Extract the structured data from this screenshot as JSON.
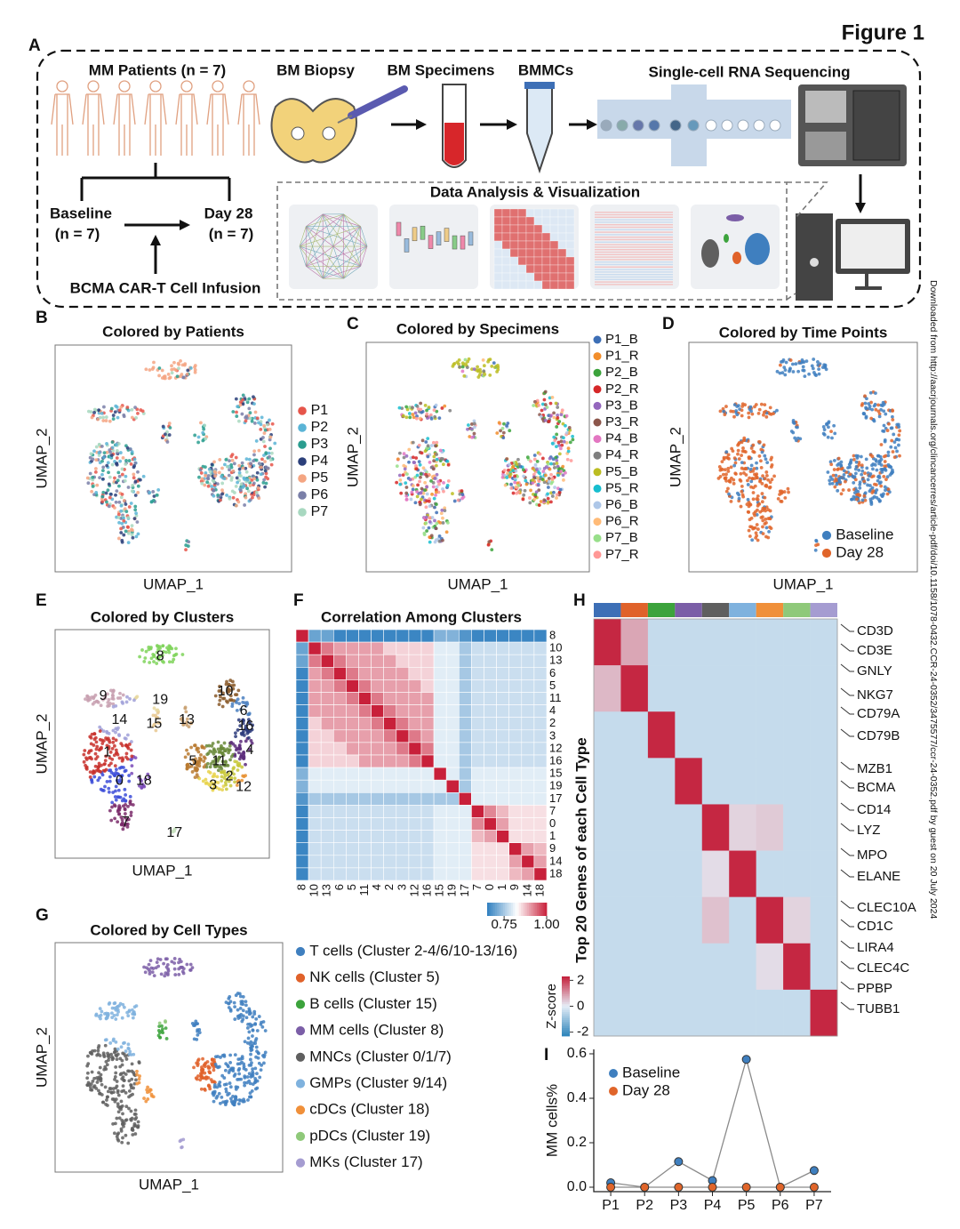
{
  "figure_title": "Figure 1",
  "side_note": "Downloaded from http://aacrjournals.org/clincancerres/article-pdf/doi/10.1158/1078-0432.CCR-24-0352/3475577/ccr-24-0352.pdf by guest on 20 July 2024",
  "panel_a": {
    "letter": "A",
    "patients": "MM Patients (n = 7)",
    "biopsy": "BM Biopsy",
    "specimens": "BM Specimens",
    "bmmcs": "BMMCs",
    "sequencing": "Single-cell RNA Sequencing",
    "baseline": "Baseline",
    "baseline_n": "(n = 7)",
    "day28": "Day 28",
    "day28_n": "(n = 7)",
    "infusion": "BCMA CAR-T Cell Infusion",
    "analysis": "Data Analysis & Visualization"
  },
  "umaps": [
    {
      "letter": "B",
      "title": "Colored by Patients",
      "xlabel": "UMAP_1",
      "ylabel": "UMAP_2",
      "legend": [
        {
          "name": "P1",
          "color": "#e6554a"
        },
        {
          "name": "P2",
          "color": "#5ab4d6"
        },
        {
          "name": "P3",
          "color": "#2a9d8f"
        },
        {
          "name": "P4",
          "color": "#2b3f7a"
        },
        {
          "name": "P5",
          "color": "#f4a582"
        },
        {
          "name": "P6",
          "color": "#7a7fa8"
        },
        {
          "name": "P7",
          "color": "#a8d8c0"
        }
      ]
    },
    {
      "letter": "C",
      "title": "Colored by Specimens",
      "xlabel": "UMAP_1",
      "ylabel": "UMAP_2",
      "legend": [
        {
          "name": "P1_B",
          "color": "#3d6fb6"
        },
        {
          "name": "P1_R",
          "color": "#f28e2b"
        },
        {
          "name": "P2_B",
          "color": "#3ca33c"
        },
        {
          "name": "P2_R",
          "color": "#d62728"
        },
        {
          "name": "P3_B",
          "color": "#9467bd"
        },
        {
          "name": "P3_R",
          "color": "#8c564b"
        },
        {
          "name": "P4_B",
          "color": "#e377c2"
        },
        {
          "name": "P4_R",
          "color": "#7f7f7f"
        },
        {
          "name": "P5_B",
          "color": "#bcbd22"
        },
        {
          "name": "P5_R",
          "color": "#17becf"
        },
        {
          "name": "P6_B",
          "color": "#aec7e8"
        },
        {
          "name": "P6_R",
          "color": "#ffbb78"
        },
        {
          "name": "P7_B",
          "color": "#98df8a"
        },
        {
          "name": "P7_R",
          "color": "#ff9896"
        }
      ]
    },
    {
      "letter": "D",
      "title": "Colored by Time Points",
      "xlabel": "UMAP_1",
      "ylabel": "UMAP_2",
      "legend": [
        {
          "name": "Baseline",
          "color": "#3f7fbf"
        },
        {
          "name": "Day 28",
          "color": "#e0652a"
        }
      ]
    },
    {
      "letter": "E",
      "title": "Colored by Clusters",
      "xlabel": "UMAP_1",
      "ylabel": "UMAP_2",
      "clusters": [
        {
          "label": "0",
          "color": "#3b4cd8"
        },
        {
          "label": "1",
          "color": "#c8302c"
        },
        {
          "label": "2",
          "color": "#c8c83a"
        },
        {
          "label": "3",
          "color": "#e8d24a"
        },
        {
          "label": "4",
          "color": "#5a2a7a"
        },
        {
          "label": "5",
          "color": "#b87a30"
        },
        {
          "label": "6",
          "color": "#4a7fbf"
        },
        {
          "label": "7",
          "color": "#7a2a6a"
        },
        {
          "label": "8",
          "color": "#7fd45a"
        },
        {
          "label": "9",
          "color": "#c8a0b0"
        },
        {
          "label": "10",
          "color": "#8a5a2a"
        },
        {
          "label": "11",
          "color": "#6a8a3a"
        },
        {
          "label": "12",
          "color": "#e89030"
        },
        {
          "label": "13",
          "color": "#c8a070"
        },
        {
          "label": "14",
          "color": "#a0a0d8"
        },
        {
          "label": "15",
          "color": "#e8c890"
        },
        {
          "label": "16",
          "color": "#2a3a7a"
        },
        {
          "label": "17",
          "color": "#c8e0c0"
        },
        {
          "label": "18",
          "color": "#7a4ab8"
        },
        {
          "label": "19",
          "color": "#e8d8a0"
        }
      ]
    },
    {
      "letter": "G",
      "title": "Colored by Cell Types",
      "xlabel": "UMAP_1",
      "ylabel": "UMAP_2",
      "legend": [
        {
          "name": "T cells (Cluster 2-4/6/10-13/16)",
          "color": "#3f7fbf"
        },
        {
          "name": "NK cells (Cluster 5)",
          "color": "#e0622a"
        },
        {
          "name": "B cells (Cluster 15)",
          "color": "#3ca33c"
        },
        {
          "name": "MM cells (Cluster 8)",
          "color": "#7b5ea7"
        },
        {
          "name": "MNCs (Cluster 0/1/7)",
          "color": "#5f5f5f"
        },
        {
          "name": "GMPs (Cluster 9/14)",
          "color": "#7fb2de"
        },
        {
          "name": "cDCs (Cluster 18)",
          "color": "#f0903a"
        },
        {
          "name": "pDCs (Cluster 19)",
          "color": "#8fc97a"
        },
        {
          "name": "MKs (Cluster 17)",
          "color": "#a59cd1"
        }
      ]
    }
  ],
  "panel_f": {
    "letter": "F",
    "title": "Correlation Among Clusters",
    "labels": [
      "8",
      "10",
      "13",
      "6",
      "5",
      "11",
      "4",
      "2",
      "3",
      "12",
      "16",
      "15",
      "19",
      "17",
      "7",
      "0",
      "1",
      "9",
      "14",
      "18"
    ],
    "matrix": [
      [
        1,
        0.7,
        0.7,
        0.66,
        0.66,
        0.66,
        0.66,
        0.66,
        0.66,
        0.66,
        0.66,
        0.72,
        0.72,
        0.68,
        0.66,
        0.66,
        0.66,
        0.66,
        0.66,
        0.66
      ],
      [
        0.7,
        1,
        0.93,
        0.9,
        0.9,
        0.9,
        0.9,
        0.86,
        0.86,
        0.86,
        0.86,
        0.8,
        0.8,
        0.75,
        0.78,
        0.78,
        0.78,
        0.78,
        0.78,
        0.78
      ],
      [
        0.7,
        0.93,
        1,
        0.93,
        0.9,
        0.9,
        0.9,
        0.9,
        0.86,
        0.86,
        0.86,
        0.8,
        0.8,
        0.75,
        0.78,
        0.78,
        0.78,
        0.78,
        0.78,
        0.78
      ],
      [
        0.66,
        0.9,
        0.93,
        1,
        0.93,
        0.9,
        0.9,
        0.9,
        0.9,
        0.86,
        0.86,
        0.8,
        0.8,
        0.75,
        0.78,
        0.78,
        0.78,
        0.78,
        0.78,
        0.78
      ],
      [
        0.66,
        0.9,
        0.9,
        0.93,
        1,
        0.93,
        0.9,
        0.9,
        0.9,
        0.9,
        0.86,
        0.8,
        0.8,
        0.75,
        0.78,
        0.78,
        0.78,
        0.78,
        0.78,
        0.78
      ],
      [
        0.66,
        0.9,
        0.9,
        0.9,
        0.93,
        1,
        0.93,
        0.9,
        0.9,
        0.9,
        0.9,
        0.8,
        0.8,
        0.75,
        0.78,
        0.78,
        0.78,
        0.78,
        0.78,
        0.78
      ],
      [
        0.66,
        0.9,
        0.9,
        0.9,
        0.9,
        0.93,
        1,
        0.93,
        0.9,
        0.9,
        0.9,
        0.8,
        0.8,
        0.75,
        0.78,
        0.78,
        0.78,
        0.78,
        0.78,
        0.78
      ],
      [
        0.66,
        0.86,
        0.9,
        0.9,
        0.9,
        0.9,
        0.93,
        1,
        0.93,
        0.9,
        0.9,
        0.8,
        0.8,
        0.75,
        0.78,
        0.78,
        0.78,
        0.78,
        0.78,
        0.78
      ],
      [
        0.66,
        0.86,
        0.86,
        0.9,
        0.9,
        0.9,
        0.9,
        0.93,
        1,
        0.93,
        0.9,
        0.8,
        0.8,
        0.75,
        0.78,
        0.78,
        0.78,
        0.78,
        0.78,
        0.78
      ],
      [
        0.66,
        0.86,
        0.86,
        0.86,
        0.9,
        0.9,
        0.9,
        0.9,
        0.93,
        1,
        0.93,
        0.8,
        0.8,
        0.75,
        0.78,
        0.78,
        0.78,
        0.78,
        0.78,
        0.78
      ],
      [
        0.66,
        0.86,
        0.86,
        0.86,
        0.86,
        0.9,
        0.9,
        0.9,
        0.9,
        0.93,
        1,
        0.8,
        0.8,
        0.75,
        0.78,
        0.78,
        0.78,
        0.78,
        0.78,
        0.78
      ],
      [
        0.72,
        0.8,
        0.8,
        0.8,
        0.8,
        0.8,
        0.8,
        0.8,
        0.8,
        0.8,
        0.8,
        1,
        0.8,
        0.75,
        0.8,
        0.8,
        0.8,
        0.8,
        0.8,
        0.8
      ],
      [
        0.72,
        0.8,
        0.8,
        0.8,
        0.8,
        0.8,
        0.8,
        0.8,
        0.8,
        0.8,
        0.8,
        0.8,
        1,
        0.75,
        0.8,
        0.8,
        0.8,
        0.8,
        0.8,
        0.8
      ],
      [
        0.68,
        0.75,
        0.75,
        0.75,
        0.75,
        0.75,
        0.75,
        0.75,
        0.75,
        0.75,
        0.75,
        0.75,
        0.75,
        1,
        0.8,
        0.8,
        0.8,
        0.8,
        0.8,
        0.8
      ],
      [
        0.66,
        0.78,
        0.78,
        0.78,
        0.78,
        0.78,
        0.78,
        0.78,
        0.78,
        0.78,
        0.78,
        0.8,
        0.8,
        0.8,
        1,
        0.92,
        0.88,
        0.85,
        0.85,
        0.85
      ],
      [
        0.66,
        0.78,
        0.78,
        0.78,
        0.78,
        0.78,
        0.78,
        0.78,
        0.78,
        0.78,
        0.78,
        0.8,
        0.8,
        0.8,
        0.92,
        1,
        0.9,
        0.85,
        0.85,
        0.85
      ],
      [
        0.66,
        0.78,
        0.78,
        0.78,
        0.78,
        0.78,
        0.78,
        0.78,
        0.78,
        0.78,
        0.78,
        0.8,
        0.8,
        0.8,
        0.88,
        0.9,
        1,
        0.85,
        0.85,
        0.85
      ],
      [
        0.66,
        0.78,
        0.78,
        0.78,
        0.78,
        0.78,
        0.78,
        0.78,
        0.78,
        0.78,
        0.78,
        0.8,
        0.8,
        0.8,
        0.85,
        0.85,
        0.85,
        1,
        0.9,
        0.88
      ],
      [
        0.66,
        0.78,
        0.78,
        0.78,
        0.78,
        0.78,
        0.78,
        0.78,
        0.78,
        0.78,
        0.78,
        0.8,
        0.8,
        0.8,
        0.85,
        0.85,
        0.85,
        0.9,
        1,
        0.9
      ],
      [
        0.66,
        0.78,
        0.78,
        0.78,
        0.78,
        0.78,
        0.78,
        0.78,
        0.78,
        0.78,
        0.78,
        0.8,
        0.8,
        0.8,
        0.85,
        0.85,
        0.85,
        0.88,
        0.9,
        1
      ]
    ],
    "colorbar_lim": [
      0.65,
      1.0
    ],
    "colorbar_ticks": [
      0.75,
      {
        "value": 1,
        "label": "1.00"
      }
    ],
    "colors": [
      "#2f7fbf",
      "#ffffff",
      "#c8203a"
    ]
  },
  "panel_h": {
    "letter": "H",
    "ylabel": "Top 20 Genes of each Cell Type",
    "genes": [
      "CD3D",
      "CD3E",
      "GNLY",
      "NKG7",
      "CD79A",
      "CD79B",
      "MZB1",
      "BCMA",
      "CD14",
      "LYZ",
      "MPO",
      "ELANE",
      "CLEC10A",
      "CD1C",
      "LIRA4",
      "CLEC4C",
      "PPBP",
      "TUBB1"
    ],
    "column_colors": [
      "#3d6fb6",
      "#e0622a",
      "#3ca33c",
      "#7b5ea7",
      "#5f5f5f",
      "#7fb2de",
      "#f0903a",
      "#8fc97a",
      "#a59cd1"
    ],
    "z_blocks": [
      [
        2.2,
        0.8,
        -0.4,
        -0.4,
        -0.4,
        -0.4,
        -0.4,
        -0.4,
        -0.4
      ],
      [
        0.6,
        2.2,
        -0.4,
        -0.4,
        -0.4,
        -0.4,
        -0.4,
        -0.4,
        -0.4
      ],
      [
        -0.4,
        -0.4,
        2.2,
        -0.4,
        -0.4,
        -0.4,
        -0.4,
        -0.4,
        -0.4
      ],
      [
        -0.4,
        -0.4,
        -0.4,
        2.2,
        -0.4,
        -0.4,
        -0.4,
        -0.4,
        -0.4
      ],
      [
        -0.4,
        -0.4,
        -0.4,
        -0.4,
        2.2,
        0.3,
        0.4,
        -0.4,
        -0.4
      ],
      [
        -0.4,
        -0.4,
        -0.4,
        -0.4,
        0.2,
        2.2,
        -0.4,
        -0.4,
        -0.4
      ],
      [
        -0.4,
        -0.4,
        -0.4,
        -0.4,
        0.5,
        -0.4,
        2.2,
        0.3,
        -0.4
      ],
      [
        -0.4,
        -0.4,
        -0.4,
        -0.4,
        -0.4,
        -0.4,
        0.2,
        2.2,
        -0.4
      ],
      [
        -0.4,
        -0.4,
        -0.4,
        -0.4,
        -0.4,
        -0.4,
        -0.4,
        -0.4,
        2.2
      ]
    ],
    "colorbar_label": "Z-score",
    "colorbar_lim": [
      -2.3,
      2.3
    ],
    "colorbar_ticks": [
      2,
      0,
      -2
    ],
    "colors": [
      "#2b83ba",
      "#e6eef7",
      "#c41e3a"
    ]
  },
  "chart_data": {
    "type": "line",
    "letter": "I",
    "categories": [
      "P1",
      "P2",
      "P3",
      "P4",
      "P5",
      "P6",
      "P7"
    ],
    "series": [
      {
        "name": "Baseline",
        "color": "#3f7fbf",
        "values": [
          0.02,
          0.0,
          0.115,
          0.03,
          0.575,
          0.0,
          0.075
        ]
      },
      {
        "name": "Day 28",
        "color": "#e0652a",
        "values": [
          0.0,
          0.0,
          0.0,
          0.0,
          0.0,
          0.0,
          0.0
        ]
      }
    ],
    "line_color": "#8a8a8a",
    "ylabel": "MM cells%",
    "ylim": [
      -0.02,
      0.62
    ],
    "yticks": [
      {
        "value": 0,
        "label": "0.0"
      },
      0.2,
      0.4,
      0.6
    ]
  }
}
